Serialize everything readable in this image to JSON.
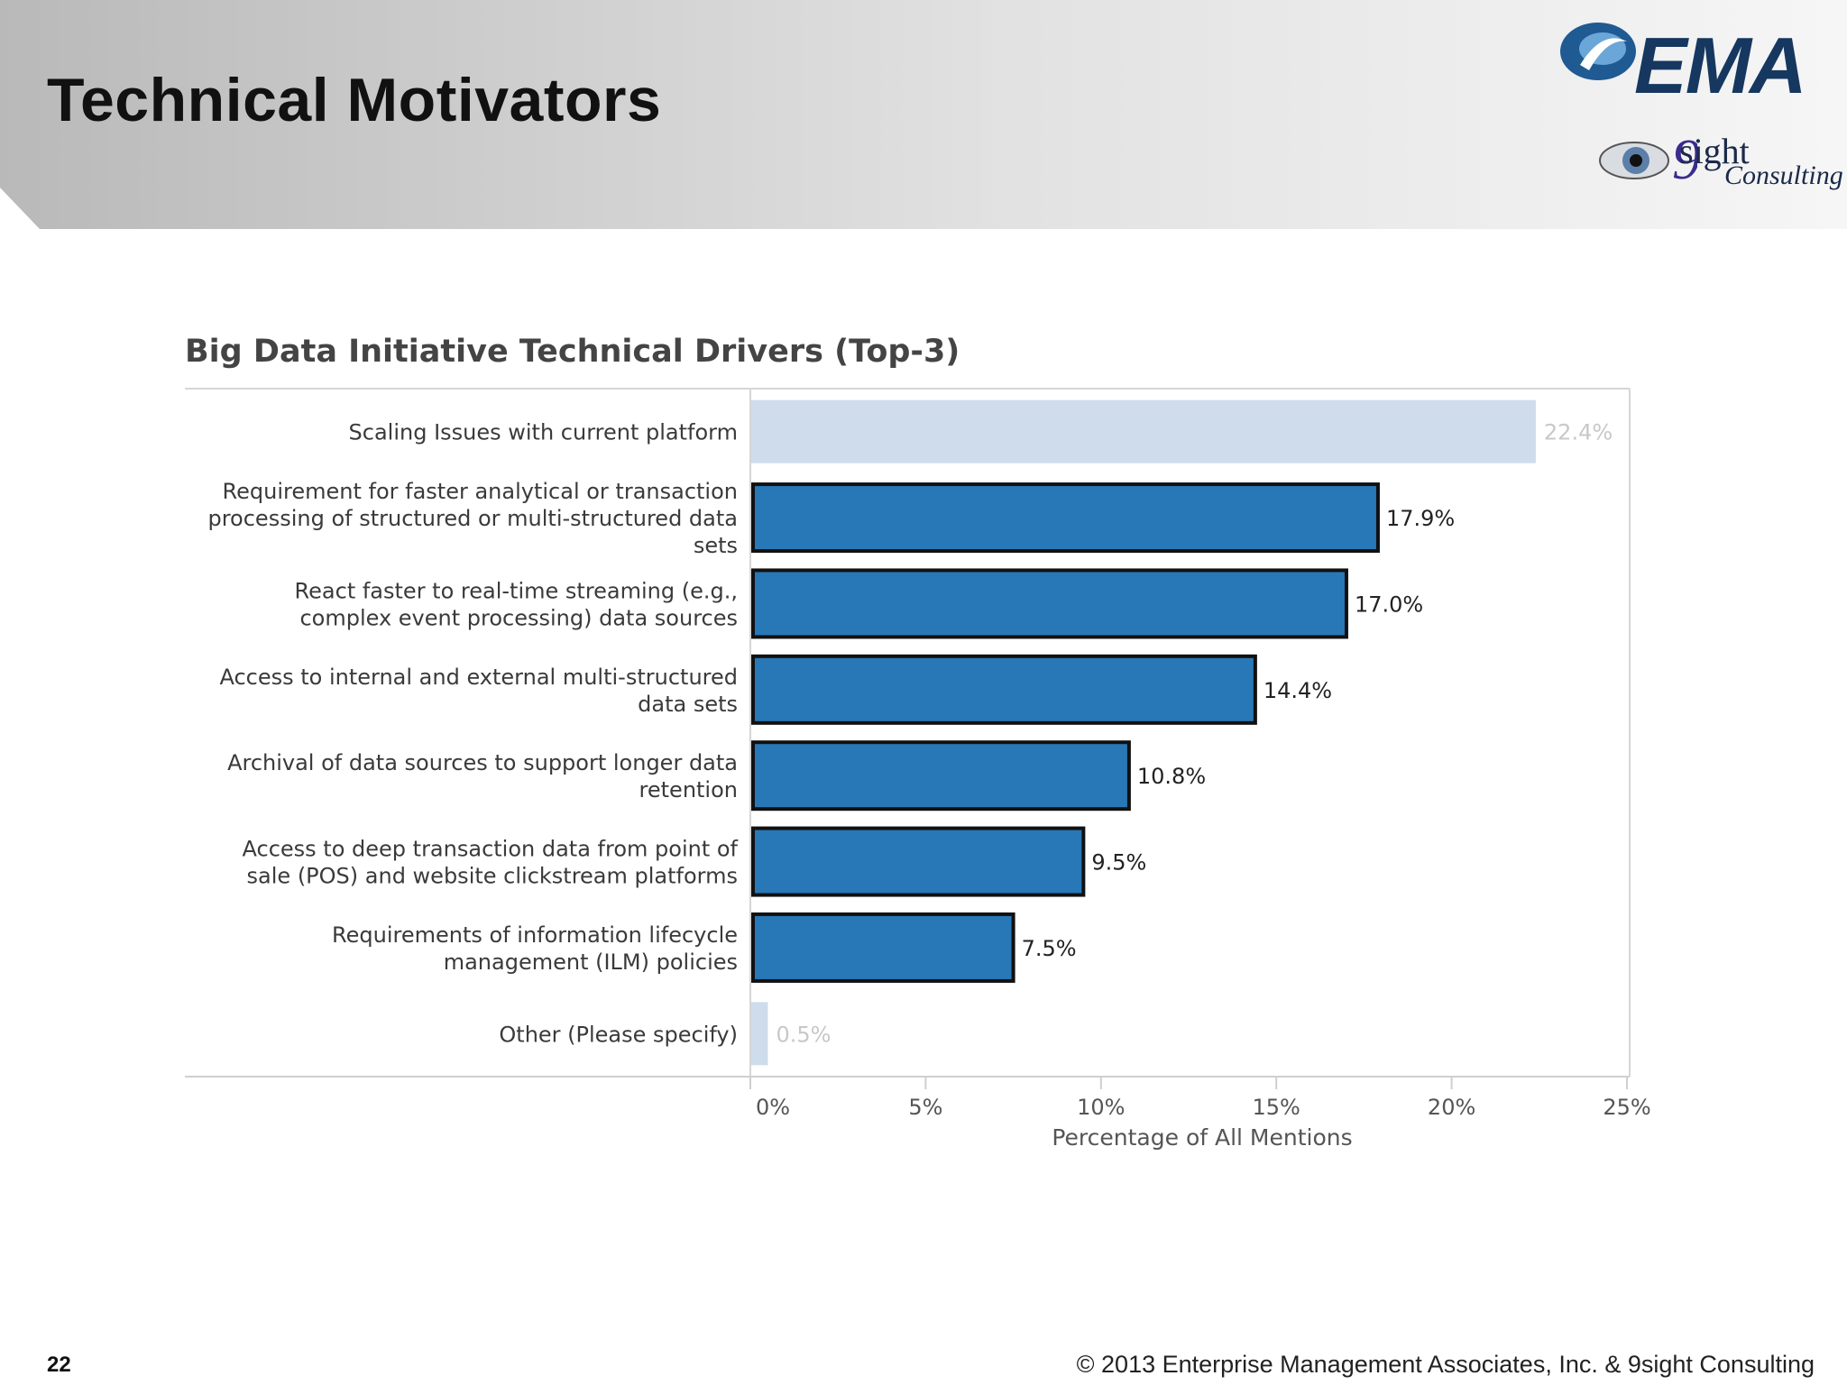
{
  "slide": {
    "title": "Technical Motivators",
    "page_number": "22",
    "copyright": "© 2013 Enterprise Management Associates, Inc. & 9sight Consulting",
    "logo_ema_text": "EMA",
    "logo_9sight_text": "sight",
    "logo_9sight_sub": "Consulting"
  },
  "colors": {
    "bar_highlight": "#2878b8",
    "bar_muted": "#cedceb",
    "label_muted": "#c8c8c8",
    "header_grad_start": "#b8b8b8",
    "header_grad_end": "#f4f4f4"
  },
  "chart_data": {
    "type": "bar",
    "orientation": "horizontal",
    "title": "Big Data Initiative Technical Drivers (Top-3)",
    "xlabel": "Percentage of All Mentions",
    "ylabel": "",
    "xlim": [
      0,
      25
    ],
    "x_ticks": [
      "0%",
      "5%",
      "10%",
      "15%",
      "20%",
      "25%"
    ],
    "grid": false,
    "categories": [
      "Scaling Issues with current platform",
      "Requirement for faster analytical or transaction processing of structured or multi-structured data sets",
      "React faster to  real-time streaming (e.g., complex event processing) data sources",
      "Access to internal and external multi-structured data sets",
      "Archival of data sources to support longer data retention",
      "Access to deep transaction data from point of sale (POS) and website clickstream platforms",
      "Requirements of information lifecycle management (ILM) policies",
      "Other (Please specify)"
    ],
    "category_lines": [
      [
        "Scaling Issues with current platform"
      ],
      [
        "Requirement for faster analytical or transaction",
        "processing of structured or multi-structured data",
        "sets"
      ],
      [
        "React faster to  real-time streaming (e.g.,",
        "complex event processing) data sources"
      ],
      [
        "Access to internal and external multi-structured",
        "data sets"
      ],
      [
        "Archival of data sources to support longer data",
        "retention"
      ],
      [
        "Access to deep transaction data from point of",
        "sale (POS) and website clickstream platforms"
      ],
      [
        "Requirements of information lifecycle",
        "management (ILM) policies"
      ],
      [
        "Other (Please specify)"
      ]
    ],
    "values": [
      22.4,
      17.9,
      17.0,
      14.4,
      10.8,
      9.5,
      7.5,
      0.5
    ],
    "value_labels": [
      "22.4%",
      "17.9%",
      "17.0%",
      "14.4%",
      "10.8%",
      "9.5%",
      "7.5%",
      "0.5%"
    ],
    "highlighted": [
      false,
      true,
      true,
      true,
      true,
      true,
      true,
      false
    ]
  }
}
